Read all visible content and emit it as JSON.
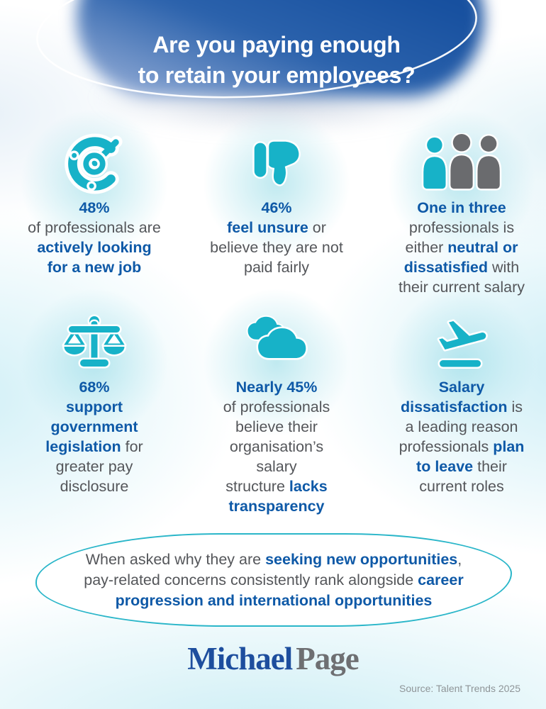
{
  "header": {
    "title_line1": "Are you paying enough",
    "title_line2": "to retain your employees?"
  },
  "stats": [
    {
      "icon": "target-progress-icon",
      "segments": [
        {
          "t": "48%",
          "b": true
        },
        {
          "nl": true
        },
        {
          "t": "of professionals are",
          "b": false
        },
        {
          "nl": true
        },
        {
          "t": "actively looking",
          "b": true
        },
        {
          "nl": true
        },
        {
          "t": "for a new job",
          "b": true
        }
      ]
    },
    {
      "icon": "thumbs-down-icon",
      "segments": [
        {
          "t": "46%",
          "b": true
        },
        {
          "nl": true
        },
        {
          "t": "feel unsure",
          "b": true
        },
        {
          "t": " or",
          "b": false
        },
        {
          "nl": true
        },
        {
          "t": "believe they are not",
          "b": false
        },
        {
          "nl": true
        },
        {
          "t": "paid fairly",
          "b": false
        }
      ]
    },
    {
      "icon": "three-people-icon",
      "segments": [
        {
          "t": "One in three",
          "b": true
        },
        {
          "nl": true
        },
        {
          "t": "professionals is",
          "b": false
        },
        {
          "nl": true
        },
        {
          "t": "either ",
          "b": false
        },
        {
          "t": "neutral or",
          "b": true
        },
        {
          "nl": true
        },
        {
          "t": "dissatisfied",
          "b": true
        },
        {
          "t": " with",
          "b": false
        },
        {
          "nl": true
        },
        {
          "t": "their current salary",
          "b": false
        }
      ]
    },
    {
      "icon": "scales-icon",
      "segments": [
        {
          "t": "68%",
          "b": true
        },
        {
          "nl": true
        },
        {
          "t": "support",
          "b": true
        },
        {
          "nl": true
        },
        {
          "t": "government",
          "b": true
        },
        {
          "nl": true
        },
        {
          "t": "legislation",
          "b": true
        },
        {
          "t": " for",
          "b": false
        },
        {
          "nl": true
        },
        {
          "t": "greater pay",
          "b": false
        },
        {
          "nl": true
        },
        {
          "t": "disclosure",
          "b": false
        }
      ]
    },
    {
      "icon": "clouds-icon",
      "segments": [
        {
          "t": "Nearly 45%",
          "b": true
        },
        {
          "nl": true
        },
        {
          "t": "of professionals",
          "b": false
        },
        {
          "nl": true
        },
        {
          "t": "believe their",
          "b": false
        },
        {
          "nl": true
        },
        {
          "t": "organisation’s",
          "b": false
        },
        {
          "nl": true
        },
        {
          "t": "salary",
          "b": false
        },
        {
          "nl": true
        },
        {
          "t": "structure ",
          "b": false
        },
        {
          "t": "lacks",
          "b": true
        },
        {
          "nl": true
        },
        {
          "t": "transparency",
          "b": true
        }
      ]
    },
    {
      "icon": "plane-takeoff-icon",
      "segments": [
        {
          "t": "Salary",
          "b": true
        },
        {
          "nl": true
        },
        {
          "t": "dissatisfaction",
          "b": true
        },
        {
          "t": " is",
          "b": false
        },
        {
          "nl": true
        },
        {
          "t": "a leading reason",
          "b": false
        },
        {
          "nl": true
        },
        {
          "t": "professionals ",
          "b": false
        },
        {
          "t": "plan",
          "b": true
        },
        {
          "nl": true
        },
        {
          "t": "to leave",
          "b": true
        },
        {
          "t": " their",
          "b": false
        },
        {
          "nl": true
        },
        {
          "t": "current roles",
          "b": false
        }
      ]
    }
  ],
  "callout": {
    "segments": [
      {
        "t": "When asked why they are ",
        "b": false
      },
      {
        "t": "seeking new opportunities",
        "b": true
      },
      {
        "t": ",",
        "b": false
      },
      {
        "nl": true
      },
      {
        "t": "pay-related concerns consistently rank alongside ",
        "b": false
      },
      {
        "t": "career",
        "b": true
      },
      {
        "nl": true
      },
      {
        "t": "progression and international opportunities",
        "b": true
      }
    ]
  },
  "logo": {
    "part1": "Michael",
    "part2": "Page"
  },
  "footer": {
    "source": "Source: Talent Trends 2025"
  },
  "colors": {
    "accent_teal": "#17b2c8",
    "emphasis_blue": "#0e59a7",
    "body_gray": "#54565a",
    "header_blue": "#1e57a7",
    "callout_border": "#2ab6c9",
    "people_gray": "#6a6b6e",
    "logo_blue": "#1d4e9e",
    "logo_gray": "#6e6f72"
  }
}
